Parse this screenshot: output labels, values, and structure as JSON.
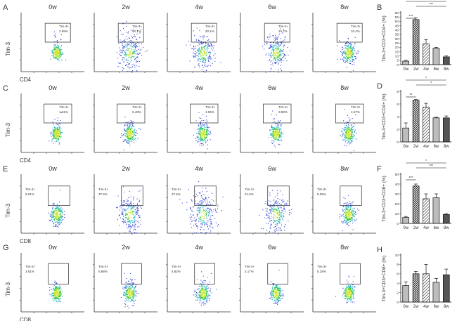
{
  "timepoints": [
    "0w",
    "2w",
    "4w",
    "6w",
    "8w"
  ],
  "gate_label": "Tim-3+",
  "rows": [
    {
      "panel_letter": "A",
      "ylabel": "Tim-3",
      "xlabel": "CD4",
      "percentages": [
        "3.89%",
        "50.1%",
        "20.1%",
        "16.7%",
        "10.4%"
      ]
    },
    {
      "panel_letter": "C",
      "ylabel": "Tim-3",
      "xlabel": "CD4",
      "percentages": [
        "1.61%",
        "6.48%",
        "4.95%",
        "3.89%",
        "4.37%"
      ]
    },
    {
      "panel_letter": "E",
      "ylabel": "Tim-3",
      "xlabel": "CD8",
      "percentages": [
        "6.01%",
        "37.6%",
        "27.6%",
        "21.6%",
        "8.09%"
      ]
    },
    {
      "panel_letter": "G",
      "ylabel": "Tim-3",
      "xlabel": "CD8",
      "percentages": [
        "3.61%",
        "5.88%",
        "4.82%",
        "4.17%",
        "5.18%"
      ]
    }
  ],
  "chart_data": [
    {
      "type": "bar",
      "panel_letter": "B",
      "title": "",
      "xlabel": "",
      "ylabel": "Tim-3+CD3+CD4+ (%)",
      "categories": [
        "0w",
        "2w",
        "4w",
        "6w",
        "8w"
      ],
      "values": [
        4,
        52,
        24,
        19,
        9
      ],
      "errors": [
        1,
        2,
        5,
        1,
        1
      ],
      "ylim": [
        0,
        60
      ],
      "yticks": [
        "0",
        "5",
        "10",
        "15",
        "20",
        "25",
        "30",
        "35",
        "40",
        "45",
        "50",
        "55",
        "60"
      ],
      "significance": [
        {
          "from": 0,
          "to": 1,
          "label": "***"
        },
        {
          "from": 1,
          "to": 4,
          "label": "***"
        },
        {
          "from": 0,
          "to": 4,
          "label": "**"
        }
      ]
    },
    {
      "type": "bar",
      "panel_letter": "D",
      "title": "",
      "xlabel": "",
      "ylabel": "Tim-3+CD3+CD4+ (%)",
      "categories": [
        "0w",
        "2w",
        "4w",
        "6w",
        "8w"
      ],
      "values": [
        2.2,
        6.6,
        5.5,
        3.8,
        3.8
      ],
      "errors": [
        0.8,
        0.1,
        0.6,
        0.1,
        0.3
      ],
      "ylim": [
        0,
        8
      ],
      "yticks": [
        "0",
        "2",
        "4",
        "6",
        "8"
      ],
      "significance": [
        {
          "from": 0,
          "to": 1,
          "label": "**"
        },
        {
          "from": 1,
          "to": 4,
          "label": "*"
        },
        {
          "from": 0,
          "to": 4,
          "label": "*"
        }
      ]
    },
    {
      "type": "bar",
      "panel_letter": "F",
      "title": "",
      "xlabel": "",
      "ylabel": "Tim-3+CD3+CD8+ (%)",
      "categories": [
        "0w",
        "2w",
        "4w",
        "6w",
        "8w"
      ],
      "values": [
        6,
        38,
        25,
        26,
        9
      ],
      "errors": [
        1,
        2,
        5,
        4,
        1
      ],
      "ylim": [
        0,
        50
      ],
      "yticks": [
        "0",
        "10",
        "20",
        "30",
        "40",
        "50"
      ],
      "significance": [
        {
          "from": 0,
          "to": 1,
          "label": "***"
        },
        {
          "from": 1,
          "to": 4,
          "label": "***"
        },
        {
          "from": 0,
          "to": 4,
          "label": "*"
        }
      ]
    },
    {
      "type": "bar",
      "panel_letter": "H",
      "title": "",
      "xlabel": "",
      "ylabel": "Tim-3+CD3+CD8+ (%)",
      "categories": [
        "0w",
        "2w",
        "4w",
        "6w",
        "8w"
      ],
      "values": [
        3.5,
        6,
        6,
        4.2,
        5.8
      ],
      "errors": [
        0.8,
        0.5,
        2,
        0.8,
        1.2
      ],
      "ylim": [
        0,
        10
      ],
      "yticks": [
        "0",
        "2",
        "4",
        "6",
        "8",
        "10"
      ],
      "significance": []
    }
  ],
  "colors": {
    "axis": "#333333",
    "gate": "#444444",
    "dot_low": "#2b3fd6",
    "dot_mid": "#19b3c8",
    "dot_high": "#32c832",
    "dot_peak": "#d2e632",
    "bar_fill": "#ffffff",
    "bar_stroke": "#111111",
    "bar_hatch": "#222222",
    "bar_grey": "#bdbdbd",
    "bar_dark": "#555555"
  },
  "bar_styles": [
    "grey",
    "hatch",
    "lightgrey",
    "grey",
    "dark"
  ]
}
